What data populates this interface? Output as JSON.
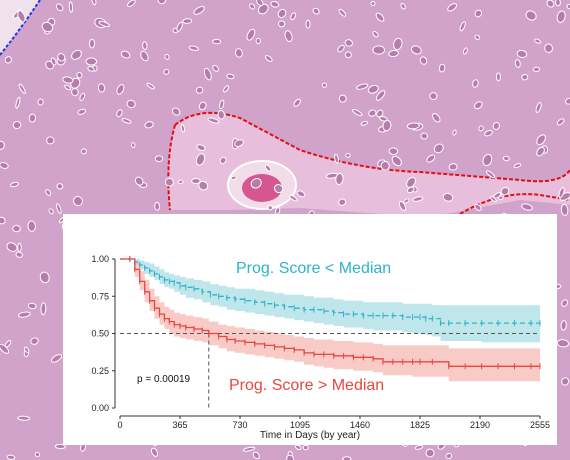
{
  "background": {
    "description_icon": "histology-tissue-icon",
    "tissue_color": "#d6a9cf",
    "nuclei_outline_color": "#ffffff",
    "region_outline_color": "#e01010",
    "edge_outline_color": "#1f35e0"
  },
  "chart_data": {
    "type": "line",
    "title": "",
    "xlabel": "Time in Days (by year)",
    "ylabel": "",
    "xlim": [
      0,
      2555
    ],
    "ylim": [
      0,
      1
    ],
    "x_ticks": [
      "0",
      "365",
      "730",
      "1095",
      "1460",
      "1825",
      "2190",
      "2555"
    ],
    "y_ticks": [
      "0.00",
      "0.25",
      "0.50",
      "0.75",
      "1.00"
    ],
    "median_line": 0.5,
    "median_crossing_x": 540,
    "annotation": "p = 0.00019",
    "grid": false,
    "series": [
      {
        "name": "Prog. Score < Median",
        "color": "#2eb3c9",
        "band_color": "#a9dde4",
        "line_style": "dashed",
        "x": [
          0,
          60,
          90,
          120,
          150,
          180,
          210,
          240,
          270,
          300,
          330,
          365,
          400,
          450,
          500,
          550,
          600,
          650,
          700,
          760,
          820,
          880,
          940,
          1000,
          1060,
          1120,
          1180,
          1240,
          1300,
          1360,
          1420,
          1480,
          1540,
          1600,
          1660,
          1720,
          1780,
          1825,
          1860,
          1900,
          1950,
          2000,
          2100,
          2200,
          2300,
          2400,
          2500,
          2555
        ],
        "values": [
          1.0,
          1.0,
          0.98,
          0.96,
          0.94,
          0.92,
          0.9,
          0.88,
          0.86,
          0.85,
          0.84,
          0.82,
          0.81,
          0.8,
          0.78,
          0.76,
          0.75,
          0.74,
          0.73,
          0.72,
          0.71,
          0.7,
          0.69,
          0.68,
          0.67,
          0.66,
          0.66,
          0.65,
          0.64,
          0.63,
          0.63,
          0.62,
          0.62,
          0.62,
          0.62,
          0.61,
          0.61,
          0.61,
          0.6,
          0.6,
          0.57,
          0.57,
          0.57,
          0.57,
          0.57,
          0.57,
          0.57,
          0.57
        ],
        "lower": [
          1.0,
          1.0,
          0.96,
          0.93,
          0.9,
          0.88,
          0.86,
          0.83,
          0.81,
          0.8,
          0.78,
          0.76,
          0.74,
          0.73,
          0.71,
          0.69,
          0.68,
          0.66,
          0.65,
          0.64,
          0.63,
          0.62,
          0.61,
          0.6,
          0.59,
          0.58,
          0.57,
          0.56,
          0.55,
          0.54,
          0.54,
          0.53,
          0.52,
          0.52,
          0.52,
          0.51,
          0.5,
          0.5,
          0.49,
          0.48,
          0.45,
          0.45,
          0.45,
          0.44,
          0.44,
          0.44,
          0.44,
          0.44
        ],
        "upper": [
          1.0,
          1.0,
          1.0,
          0.99,
          0.98,
          0.97,
          0.95,
          0.93,
          0.91,
          0.9,
          0.89,
          0.88,
          0.87,
          0.86,
          0.85,
          0.83,
          0.82,
          0.81,
          0.8,
          0.8,
          0.79,
          0.78,
          0.77,
          0.76,
          0.76,
          0.75,
          0.74,
          0.74,
          0.73,
          0.72,
          0.72,
          0.71,
          0.71,
          0.71,
          0.71,
          0.7,
          0.7,
          0.7,
          0.7,
          0.69,
          0.69,
          0.69,
          0.69,
          0.69,
          0.69,
          0.69,
          0.69,
          0.69
        ]
      },
      {
        "name": "Prog. Score > Median",
        "color": "#e8463f",
        "band_color": "#f6b9b4",
        "line_style": "solid",
        "x": [
          0,
          60,
          90,
          120,
          150,
          180,
          210,
          240,
          270,
          300,
          330,
          365,
          400,
          450,
          500,
          540,
          600,
          650,
          700,
          760,
          820,
          880,
          940,
          1000,
          1060,
          1120,
          1180,
          1240,
          1300,
          1360,
          1420,
          1480,
          1540,
          1600,
          1660,
          1720,
          1780,
          1825,
          1900,
          2000,
          2100,
          2200,
          2300,
          2400,
          2500,
          2555
        ],
        "values": [
          1.0,
          1.0,
          0.93,
          0.85,
          0.78,
          0.72,
          0.67,
          0.63,
          0.6,
          0.58,
          0.56,
          0.55,
          0.54,
          0.53,
          0.52,
          0.5,
          0.48,
          0.46,
          0.45,
          0.44,
          0.43,
          0.42,
          0.41,
          0.4,
          0.39,
          0.37,
          0.36,
          0.36,
          0.35,
          0.35,
          0.34,
          0.34,
          0.33,
          0.31,
          0.31,
          0.31,
          0.31,
          0.31,
          0.31,
          0.28,
          0.28,
          0.28,
          0.28,
          0.28,
          0.28,
          0.28
        ],
        "lower": [
          1.0,
          1.0,
          0.88,
          0.79,
          0.71,
          0.65,
          0.6,
          0.56,
          0.53,
          0.5,
          0.48,
          0.47,
          0.46,
          0.45,
          0.44,
          0.42,
          0.4,
          0.38,
          0.37,
          0.36,
          0.35,
          0.34,
          0.33,
          0.32,
          0.31,
          0.29,
          0.28,
          0.27,
          0.26,
          0.26,
          0.25,
          0.25,
          0.24,
          0.22,
          0.22,
          0.22,
          0.21,
          0.21,
          0.21,
          0.18,
          0.18,
          0.18,
          0.18,
          0.18,
          0.18,
          0.18
        ],
        "upper": [
          1.0,
          1.0,
          0.98,
          0.92,
          0.86,
          0.8,
          0.75,
          0.71,
          0.68,
          0.66,
          0.64,
          0.63,
          0.62,
          0.61,
          0.6,
          0.58,
          0.56,
          0.55,
          0.54,
          0.53,
          0.52,
          0.51,
          0.5,
          0.49,
          0.48,
          0.47,
          0.46,
          0.46,
          0.45,
          0.45,
          0.44,
          0.44,
          0.43,
          0.42,
          0.42,
          0.42,
          0.42,
          0.42,
          0.42,
          0.4,
          0.4,
          0.4,
          0.4,
          0.4,
          0.4,
          0.4
        ]
      }
    ]
  }
}
